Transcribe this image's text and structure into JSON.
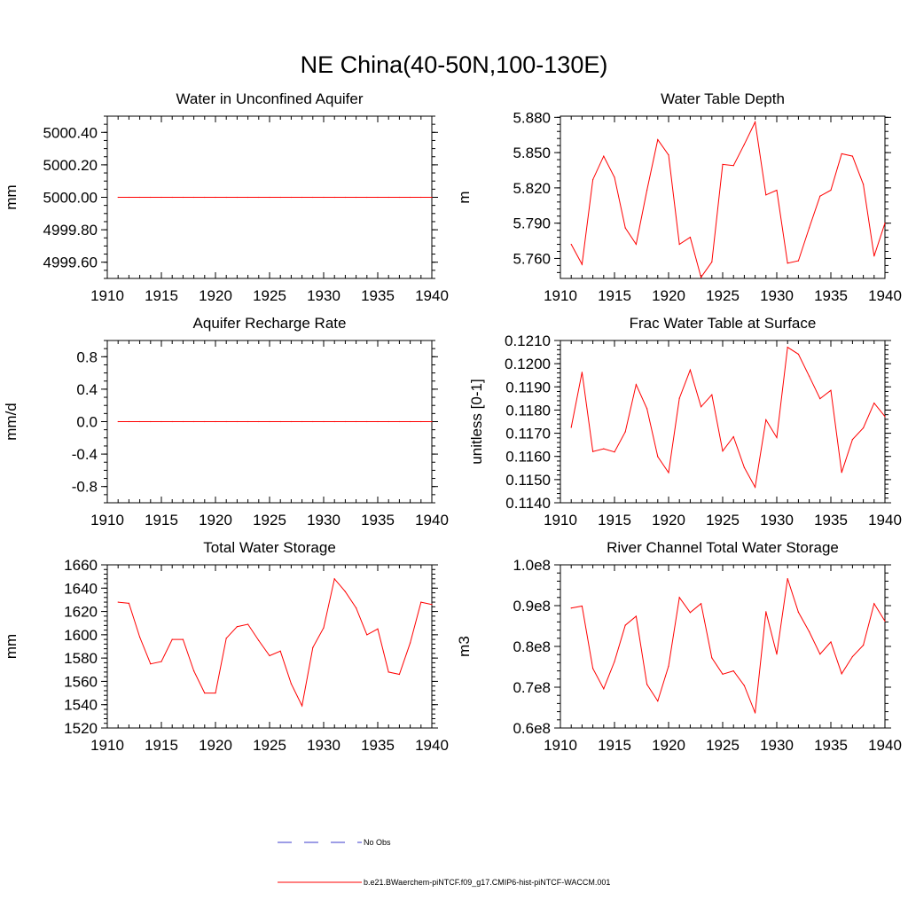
{
  "page": {
    "title": "NE China(40-50N,100-130E)"
  },
  "legend": {
    "entries": [
      {
        "label": "No Obs",
        "color": "#3b3bcc",
        "style": "dashed"
      },
      {
        "label": "b.e21.BWaerchem-piNTCF.f09_g17.CMIP6-hist-piNTCF-WACCM.001",
        "color": "#ff0000",
        "style": "solid"
      }
    ]
  },
  "chart_data": [
    {
      "type": "line",
      "title": "Water in Unconfined Aquifer",
      "ylabel": "mm",
      "xlim": [
        1910,
        1940
      ],
      "ylim": [
        4999.5,
        5000.5
      ],
      "xticks": [
        1910,
        1915,
        1920,
        1925,
        1930,
        1935,
        1940
      ],
      "yticks": [
        4999.6,
        4999.8,
        5000.0,
        5000.2,
        5000.4
      ],
      "ytick_labels": [
        "4999.60",
        "4999.80",
        "5000.00",
        "5000.20",
        "5000.40"
      ],
      "yminor": 0.05,
      "series": [
        {
          "color": "#ff0000",
          "x": [
            1911,
            1912,
            1913,
            1914,
            1915,
            1916,
            1917,
            1918,
            1919,
            1920,
            1921,
            1922,
            1923,
            1924,
            1925,
            1926,
            1927,
            1928,
            1929,
            1930,
            1931,
            1932,
            1933,
            1934,
            1935,
            1936,
            1937,
            1938,
            1939,
            1940
          ],
          "y": [
            5000,
            5000,
            5000,
            5000,
            5000,
            5000,
            5000,
            5000,
            5000,
            5000,
            5000,
            5000,
            5000,
            5000,
            5000,
            5000,
            5000,
            5000,
            5000,
            5000,
            5000,
            5000,
            5000,
            5000,
            5000,
            5000,
            5000,
            5000,
            5000,
            5000
          ]
        }
      ]
    },
    {
      "type": "line",
      "title": "Water Table Depth",
      "ylabel": "m",
      "xlim": [
        1910,
        1940
      ],
      "ylim": [
        5.743,
        5.881
      ],
      "xticks": [
        1910,
        1915,
        1920,
        1925,
        1930,
        1935,
        1940
      ],
      "yticks": [
        5.76,
        5.79,
        5.82,
        5.85,
        5.88
      ],
      "ytick_labels": [
        "5.760",
        "5.790",
        "5.820",
        "5.850",
        "5.880"
      ],
      "yminor": 0.006,
      "series": [
        {
          "color": "#ff0000",
          "x": [
            1911,
            1912,
            1913,
            1914,
            1915,
            1916,
            1917,
            1918,
            1919,
            1920,
            1921,
            1922,
            1923,
            1924,
            1925,
            1926,
            1927,
            1928,
            1929,
            1930,
            1931,
            1932,
            1933,
            1934,
            1935,
            1936,
            1937,
            1938,
            1939,
            1940
          ],
          "y": [
            5.772,
            5.755,
            5.827,
            5.847,
            5.829,
            5.786,
            5.772,
            5.818,
            5.861,
            5.848,
            5.772,
            5.778,
            5.744,
            5.757,
            5.84,
            5.839,
            5.857,
            5.876,
            5.814,
            5.818,
            5.756,
            5.758,
            5.786,
            5.813,
            5.818,
            5.849,
            5.847,
            5.823,
            5.762,
            5.79
          ]
        }
      ]
    },
    {
      "type": "line",
      "title": "Aquifer Recharge Rate",
      "ylabel": "mm/d",
      "xlim": [
        1910,
        1940
      ],
      "ylim": [
        -1.0,
        1.0
      ],
      "xticks": [
        1910,
        1915,
        1920,
        1925,
        1930,
        1935,
        1940
      ],
      "yticks": [
        -0.8,
        -0.4,
        0.0,
        0.4,
        0.8
      ],
      "ytick_labels": [
        "-0.8",
        "-0.4",
        "0.0",
        "0.4",
        "0.8"
      ],
      "yminor": 0.1,
      "series": [
        {
          "color": "#ff0000",
          "x": [
            1911,
            1912,
            1913,
            1914,
            1915,
            1916,
            1917,
            1918,
            1919,
            1920,
            1921,
            1922,
            1923,
            1924,
            1925,
            1926,
            1927,
            1928,
            1929,
            1930,
            1931,
            1932,
            1933,
            1934,
            1935,
            1936,
            1937,
            1938,
            1939,
            1940
          ],
          "y": [
            0,
            0,
            0,
            0,
            0,
            0,
            0,
            0,
            0,
            0,
            0,
            0,
            0,
            0,
            0,
            0,
            0,
            0,
            0,
            0,
            0,
            0,
            0,
            0,
            0,
            0,
            0,
            0,
            0,
            0
          ]
        }
      ]
    },
    {
      "type": "line",
      "title": "Frac Water Table at Surface",
      "ylabel": "unitless [0-1]",
      "xlim": [
        1910,
        1940
      ],
      "ylim": [
        0.114,
        0.121
      ],
      "xticks": [
        1910,
        1915,
        1920,
        1925,
        1930,
        1935,
        1940
      ],
      "yticks": [
        0.114,
        0.115,
        0.116,
        0.117,
        0.118,
        0.119,
        0.12,
        0.121
      ],
      "ytick_labels": [
        "0.1140",
        "0.1150",
        "0.1160",
        "0.1170",
        "0.1180",
        "0.1190",
        "0.1200",
        "0.1210"
      ],
      "yminor": 0.0002,
      "series": [
        {
          "color": "#ff0000",
          "x": [
            1911,
            1912,
            1913,
            1914,
            1915,
            1916,
            1917,
            1918,
            1919,
            1920,
            1921,
            1922,
            1923,
            1924,
            1925,
            1926,
            1927,
            1928,
            1929,
            1930,
            1931,
            1932,
            1933,
            1934,
            1935,
            1936,
            1937,
            1938,
            1939,
            1940
          ],
          "y": [
            0.11725,
            0.11963,
            0.11621,
            0.11633,
            0.11619,
            0.11706,
            0.1191,
            0.11806,
            0.11599,
            0.1153,
            0.11851,
            0.11973,
            0.11814,
            0.11866,
            0.11623,
            0.11685,
            0.11552,
            0.11467,
            0.11758,
            0.11681,
            0.12071,
            0.12041,
            0.11946,
            0.11849,
            0.11885,
            0.11531,
            0.11673,
            0.11723,
            0.1183,
            0.11772
          ]
        }
      ]
    },
    {
      "type": "line",
      "title": "Total Water Storage",
      "ylabel": "mm",
      "xlim": [
        1910,
        1940
      ],
      "ylim": [
        1520,
        1660
      ],
      "xticks": [
        1910,
        1915,
        1920,
        1925,
        1930,
        1935,
        1940
      ],
      "yticks": [
        1520,
        1540,
        1560,
        1580,
        1600,
        1620,
        1640,
        1660
      ],
      "ytick_labels": [
        "1520",
        "1540",
        "1560",
        "1580",
        "1600",
        "1620",
        "1640",
        "1660"
      ],
      "yminor": 4,
      "series": [
        {
          "color": "#ff0000",
          "x": [
            1911,
            1912,
            1913,
            1914,
            1915,
            1916,
            1917,
            1918,
            1919,
            1920,
            1921,
            1922,
            1923,
            1924,
            1925,
            1926,
            1927,
            1928,
            1929,
            1930,
            1931,
            1932,
            1933,
            1934,
            1935,
            1936,
            1937,
            1938,
            1939,
            1940
          ],
          "y": [
            1628,
            1627,
            1598,
            1575,
            1577,
            1596,
            1596,
            1569,
            1550,
            1550,
            1597,
            1607,
            1609,
            1595,
            1582,
            1586,
            1558,
            1539,
            1589,
            1606,
            1648,
            1637,
            1623,
            1600,
            1605,
            1568,
            1566,
            1593,
            1628,
            1626
          ]
        }
      ]
    },
    {
      "type": "line",
      "title": "River Channel Total Water Storage",
      "ylabel": "m3",
      "xlim": [
        1910,
        1940
      ],
      "ylim": [
        0.6,
        1.0
      ],
      "xticks": [
        1910,
        1915,
        1920,
        1925,
        1930,
        1935,
        1940
      ],
      "yticks": [
        0.6,
        0.7,
        0.8,
        0.9,
        1.0
      ],
      "ytick_labels": [
        "0.6e8",
        "0.7e8",
        "0.8e8",
        "0.9e8",
        "1.0e8"
      ],
      "yminor": 0.02,
      "series": [
        {
          "color": "#ff0000",
          "x": [
            1911,
            1912,
            1913,
            1914,
            1915,
            1916,
            1917,
            1918,
            1919,
            1920,
            1921,
            1922,
            1923,
            1924,
            1925,
            1926,
            1927,
            1928,
            1929,
            1930,
            1931,
            1932,
            1933,
            1934,
            1935,
            1936,
            1937,
            1938,
            1939,
            1940
          ],
          "y": [
            0.894,
            0.899,
            0.746,
            0.696,
            0.763,
            0.852,
            0.874,
            0.707,
            0.666,
            0.752,
            0.92,
            0.883,
            0.905,
            0.772,
            0.732,
            0.74,
            0.704,
            0.637,
            0.885,
            0.781,
            0.966,
            0.884,
            0.836,
            0.781,
            0.811,
            0.733,
            0.775,
            0.803,
            0.905,
            0.862
          ]
        }
      ]
    }
  ]
}
